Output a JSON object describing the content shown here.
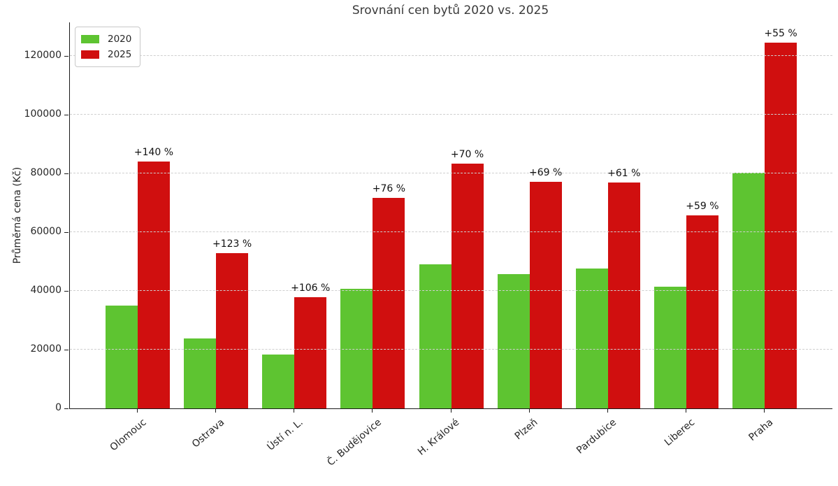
{
  "chart_data": {
    "type": "bar",
    "title": "Srovnání cen bytů 2020 vs. 2025",
    "xlabel": "",
    "ylabel": "Průměrná cena (Kč)",
    "categories": [
      "Olomouc",
      "Ostrava",
      "Ústí n. L.",
      "Č. Budějovice",
      "H. Králové",
      "Plzeň",
      "Pardubice",
      "Liberec",
      "Praha"
    ],
    "series": [
      {
        "name": "2020",
        "color": "#5ec431",
        "values": [
          35000,
          23700,
          18400,
          40700,
          49000,
          45600,
          47700,
          41400,
          80300
        ]
      },
      {
        "name": "2025",
        "color": "#d00f0f",
        "values": [
          84000,
          52900,
          37900,
          71600,
          83300,
          77100,
          76800,
          65800,
          124500
        ]
      }
    ],
    "bar_labels": {
      "attached_to_series": "2025",
      "values": [
        "+140 %",
        "+123 %",
        "+106 %",
        "+76 %",
        "+70 %",
        "+69 %",
        "+61 %",
        "+59 %",
        "+55 %"
      ]
    },
    "yticks": [
      0,
      20000,
      40000,
      60000,
      80000,
      100000,
      120000
    ],
    "ylim": [
      0,
      131400
    ],
    "grid": "horizontal dashed gridlines drawn over bars",
    "legend_position": "upper left",
    "text_color": "#262626",
    "title_color": "#3a3a3a",
    "background_color": "#ffffff"
  }
}
